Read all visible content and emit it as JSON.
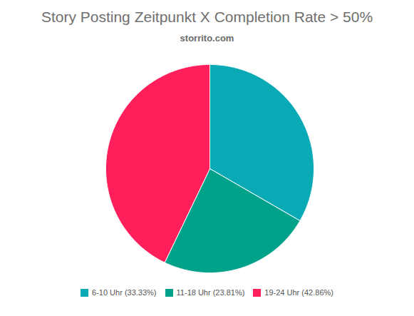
{
  "chart_data": {
    "type": "pie",
    "title": "Story Posting Zeitpunkt X Completion Rate > 50%",
    "subtitle": "storrito.com",
    "categories": [
      "6-10 Uhr (33.33%)",
      "11-18 Uhr (23.81%)",
      "19-24 Uhr (42.86%)"
    ],
    "values": [
      33.33,
      23.81,
      42.86
    ],
    "colors": [
      "#0aa9b6",
      "#00a28a",
      "#ff1f5a"
    ],
    "legend": "bottom"
  }
}
